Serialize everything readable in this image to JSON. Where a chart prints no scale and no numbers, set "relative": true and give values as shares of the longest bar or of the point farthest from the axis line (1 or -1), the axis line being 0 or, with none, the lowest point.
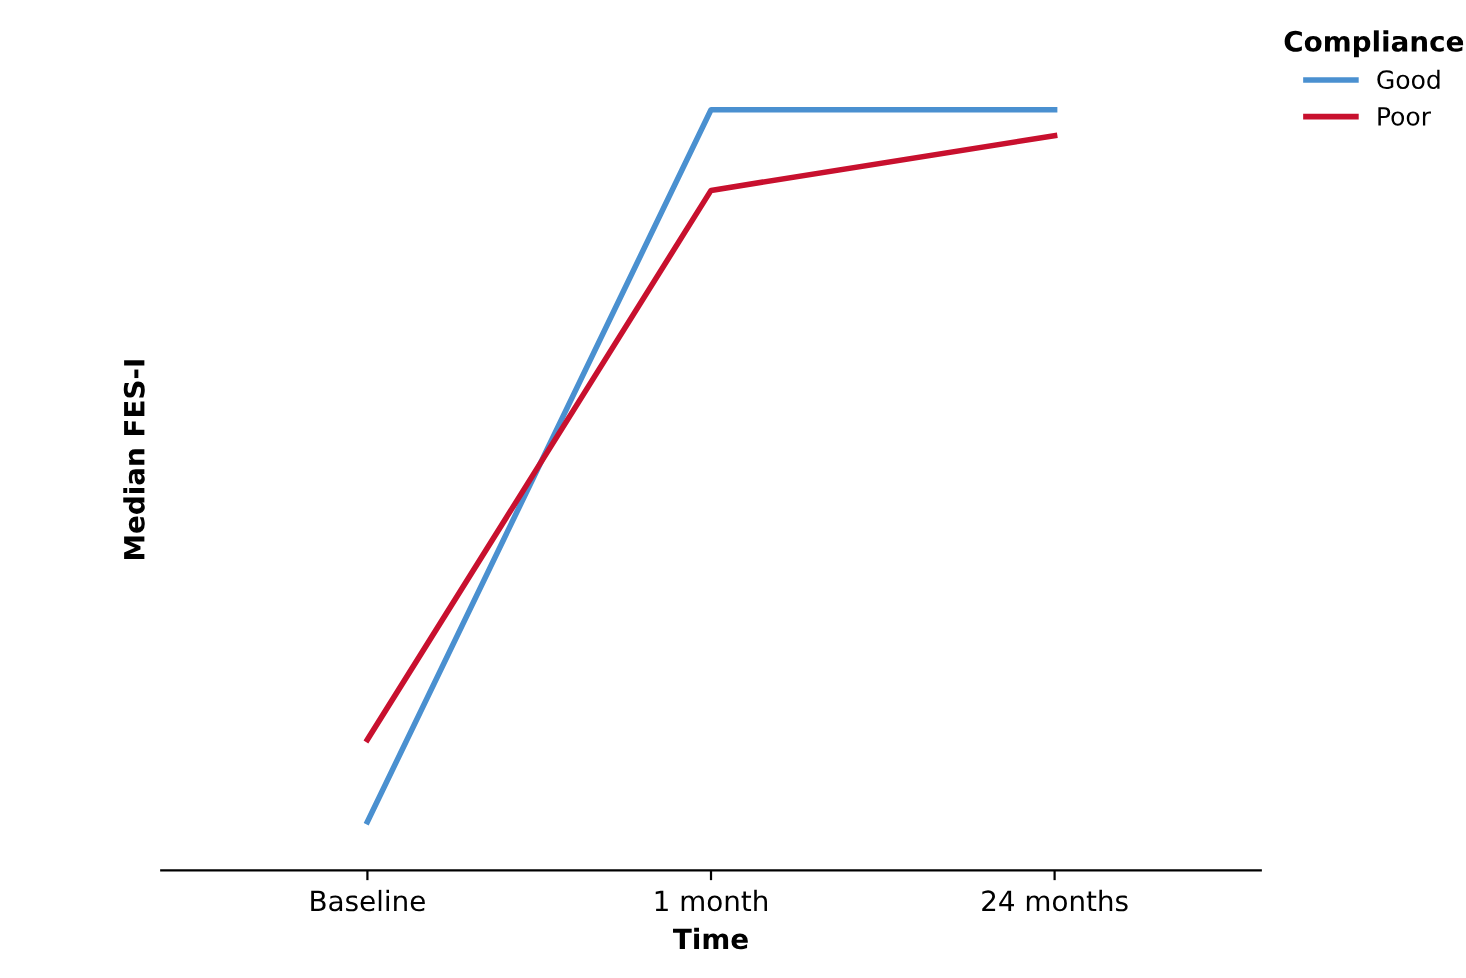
{
  "chart_data": {
    "type": "line",
    "xlabel": "Time",
    "ylabel": "Median FES-I",
    "legend_title": "Compliance",
    "legend": "top right",
    "relative": true,
    "categories": [
      "Baseline",
      "1 month",
      "24 months"
    ],
    "series": [
      {
        "name": "Good",
        "color": "#4a90d0",
        "values": [
          0.064,
          1,
          1
        ]
      },
      {
        "name": "Poor",
        "color": "#c8102e",
        "values": [
          0.172,
          0.894,
          0.966
        ]
      }
    ]
  }
}
